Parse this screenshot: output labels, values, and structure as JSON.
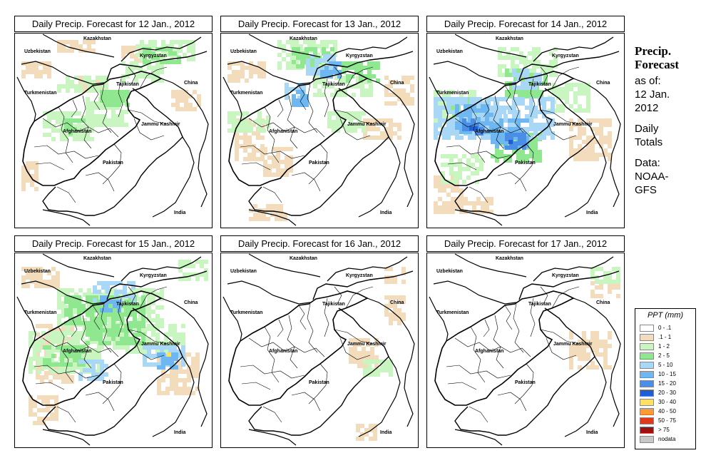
{
  "panels": [
    {
      "title": "Daily Precip. Forecast for  12 Jan., 2012",
      "labels": {
        "kazakhstan": "Kazakhstan",
        "uzbekistan": "Uzbekistan",
        "kyrgyzstan": "Kyrgyzstan",
        "tajikistan": "Tajikistan",
        "china": "China",
        "turkmenistan": "Turkmenistan",
        "afghanistan": "Afghanistan",
        "jammu": "Jammu Kashmir",
        "pakistan": "Pakistan",
        "india": "India"
      }
    },
    {
      "title": "Daily Precip. Forecast for  13 Jan., 2012",
      "labels": {
        "kazakhstan": "Kazakhstan",
        "uzbekistan": "Uzbekistan",
        "kyrgyzstan": "Kyrgyzstan",
        "tajikistan": "Tajikistan",
        "china": "China",
        "turkmenistan": "Turkmenistan",
        "afghanistan": "Afghanistan",
        "jammu": "Jammu Kashmir",
        "pakistan": "Pakistan",
        "india": "India"
      }
    },
    {
      "title": "Daily Precip. Forecast for  14 Jan., 2012",
      "labels": {
        "kazakhstan": "Kazakhstan",
        "uzbekistan": "Uzbekistan",
        "kyrgyzstan": "Kyrgyzstan",
        "tajikistan": "Tajikistan",
        "china": "China",
        "turkmenistan": "Turkmenistan",
        "afghanistan": "Afghanistan",
        "jammu": "Jammu Kashmir",
        "pakistan": "Pakistan",
        "india": "India"
      }
    },
    {
      "title": "Daily Precip. Forecast for  15 Jan., 2012",
      "labels": {
        "kazakhstan": "Kazakhstan",
        "uzbekistan": "Uzbekistan",
        "kyrgyzstan": "Kyrgyzstan",
        "tajikistan": "Tajikistan",
        "china": "China",
        "turkmenistan": "Turkmenistan",
        "afghanistan": "Afghanistan",
        "jammu": "Jammu Kashmir",
        "pakistan": "Pakistan",
        "india": "India"
      }
    },
    {
      "title": "Daily Precip. Forecast for  16 Jan., 2012",
      "labels": {
        "kazakhstan": "Kazakhstan",
        "uzbekistan": "Uzbekistan",
        "kyrgyzstan": "Kyrgyzstan",
        "tajikistan": "Tajikistan",
        "china": "China",
        "turkmenistan": "Turkmenistan",
        "afghanistan": "Afghanistan",
        "jammu": "Jammu Kashmir",
        "pakistan": "Pakistan",
        "india": "India"
      }
    },
    {
      "title": "Daily Precip. Forecast for  17 Jan., 2012",
      "labels": {
        "kazakhstan": "Kazakhstan",
        "uzbekistan": "Uzbekistan",
        "kyrgyzstan": "Kyrgyzstan",
        "tajikistan": "Tajikistan",
        "china": "China",
        "turkmenistan": "Turkmenistan",
        "afghanistan": "Afghanistan",
        "jammu": "Jammu Kashmir",
        "pakistan": "Pakistan",
        "india": "India"
      }
    }
  ],
  "sidebar": {
    "title_line1": "Precip.",
    "title_line2": "Forecast",
    "asof_line1": "as of:",
    "asof_line2": "12 Jan.",
    "asof_line3": "2012",
    "daily_line1": "Daily",
    "daily_line2": "Totals",
    "data_line1": "Data:",
    "data_line2": "NOAA-",
    "data_line3": "GFS"
  },
  "legend": {
    "title": "PPT (mm)",
    "entries": [
      {
        "label": "0 - .1",
        "color": "#ffffff"
      },
      {
        "label": ".1 - 1",
        "color": "#f2dcbc"
      },
      {
        "label": "1 - 2",
        "color": "#c8f5c0"
      },
      {
        "label": "2 - 5",
        "color": "#8fe88f"
      },
      {
        "label": "5 - 10",
        "color": "#a8d8f5"
      },
      {
        "label": "10 - 15",
        "color": "#6fb7f0"
      },
      {
        "label": "15 - 20",
        "color": "#4a8ee6"
      },
      {
        "label": "20 - 30",
        "color": "#1f5fd6"
      },
      {
        "label": "30 - 40",
        "color": "#ffe066"
      },
      {
        "label": "40 - 50",
        "color": "#ff9933"
      },
      {
        "label": "50 - 75",
        "color": "#e03a1a"
      },
      {
        "label": "> 75",
        "color": "#a01010"
      },
      {
        "label": "nodata",
        "color": "#c8c8c8"
      }
    ]
  },
  "colors": {
    "tan": "#f2dcbc",
    "lightgreen": "#c8f5c0",
    "green": "#8fe88f",
    "lightblue": "#a8d8f5",
    "blue": "#6fb7f0",
    "midblue": "#4a8ee6",
    "darkblue": "#1f5fd6",
    "yellow": "#ffe066"
  }
}
